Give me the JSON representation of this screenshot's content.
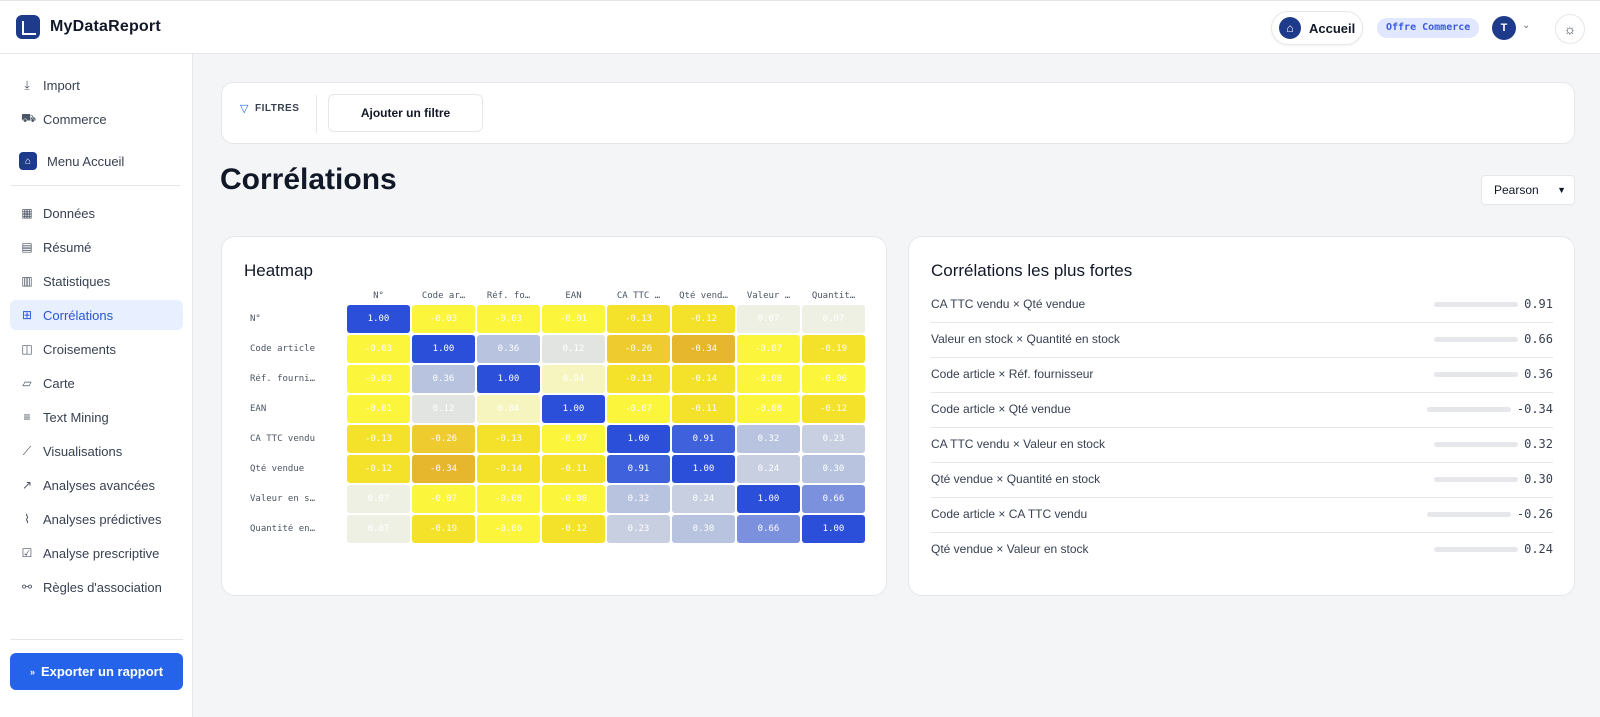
{
  "app": {
    "name": "MyDataReport"
  },
  "header": {
    "home_label": "Accueil",
    "offer_badge": "Offre Commerce",
    "avatar_initial": "T"
  },
  "sidebar": {
    "top_items": [
      {
        "label": "Import",
        "icon": "download-icon"
      },
      {
        "label": "Commerce",
        "icon": "cart-icon"
      }
    ],
    "menu_accueil": "Menu Accueil",
    "items": [
      {
        "label": "Données",
        "icon": "table-icon"
      },
      {
        "label": "Résumé",
        "icon": "document-icon"
      },
      {
        "label": "Statistiques",
        "icon": "bar-chart-icon"
      },
      {
        "label": "Corrélations",
        "icon": "grid-icon",
        "active": true
      },
      {
        "label": "Croisements",
        "icon": "columns-icon"
      },
      {
        "label": "Carte",
        "icon": "map-icon"
      },
      {
        "label": "Text Mining",
        "icon": "text-icon"
      },
      {
        "label": "Visualisations",
        "icon": "line-chart-icon"
      },
      {
        "label": "Analyses avancées",
        "icon": "trend-icon"
      },
      {
        "label": "Analyses prédictives",
        "icon": "pulse-icon"
      },
      {
        "label": "Analyse prescriptive",
        "icon": "check-square-icon"
      },
      {
        "label": "Règles d'association",
        "icon": "network-icon"
      }
    ],
    "export_label": "Exporter un rapport"
  },
  "filters": {
    "label": "FILTRES",
    "add_label": "Ajouter un filtre"
  },
  "page": {
    "title": "Corrélations",
    "method": "Pearson"
  },
  "heatmap": {
    "title": "Heatmap",
    "columns": [
      "N°",
      "Code ar…",
      "Réf. fo…",
      "EAN",
      "CA TTC …",
      "Qté vend…",
      "Valeur …",
      "Quantit…"
    ],
    "rows": [
      "N°",
      "Code article",
      "Réf. fourni…",
      "EAN",
      "CA TTC vendu",
      "Qté vendue",
      "Valeur en s…",
      "Quantité en…"
    ],
    "values": [
      [
        "1.00",
        "-0.03",
        "-0.03",
        "-0.01",
        "-0.13",
        "-0.12",
        "0.07",
        "0.07"
      ],
      [
        "-0.03",
        "1.00",
        "0.36",
        "0.12",
        "-0.26",
        "-0.34",
        "-0.07",
        "-0.19"
      ],
      [
        "-0.03",
        "0.36",
        "1.00",
        "0.04",
        "-0.13",
        "-0.14",
        "-0.08",
        "-0.06"
      ],
      [
        "-0.01",
        "0.12",
        "0.04",
        "1.00",
        "-0.07",
        "-0.11",
        "-0.08",
        "-0.12"
      ],
      [
        "-0.13",
        "-0.26",
        "-0.13",
        "-0.07",
        "1.00",
        "0.91",
        "0.32",
        "0.23"
      ],
      [
        "-0.12",
        "-0.34",
        "-0.14",
        "-0.11",
        "0.91",
        "1.00",
        "0.24",
        "0.30"
      ],
      [
        "0.07",
        "-0.07",
        "-0.08",
        "-0.08",
        "0.32",
        "0.24",
        "1.00",
        "0.66"
      ],
      [
        "0.07",
        "-0.19",
        "-0.06",
        "-0.12",
        "0.23",
        "0.30",
        "0.66",
        "1.00"
      ]
    ]
  },
  "strongest": {
    "title": "Corrélations les plus fortes",
    "items": [
      {
        "label": "CA TTC vendu × Qté vendue",
        "value": "0.91"
      },
      {
        "label": "Valeur en stock × Quantité en stock",
        "value": "0.66"
      },
      {
        "label": "Code article × Réf. fournisseur",
        "value": "0.36"
      },
      {
        "label": "Code article × Qté vendue",
        "value": "-0.34"
      },
      {
        "label": "CA TTC vendu × Valeur en stock",
        "value": "0.32"
      },
      {
        "label": "Qté vendue × Quantité en stock",
        "value": "0.30"
      },
      {
        "label": "Code article × CA TTC vendu",
        "value": "-0.26"
      },
      {
        "label": "Qté vendue × Valeur en stock",
        "value": "0.24"
      }
    ]
  },
  "colors": {
    "accent": "#2563eb",
    "brand": "#1e3a8a",
    "positive_strong": "#2a4fd6",
    "negative_strong": "#e8b530",
    "neutral": "#f1f2ea"
  }
}
